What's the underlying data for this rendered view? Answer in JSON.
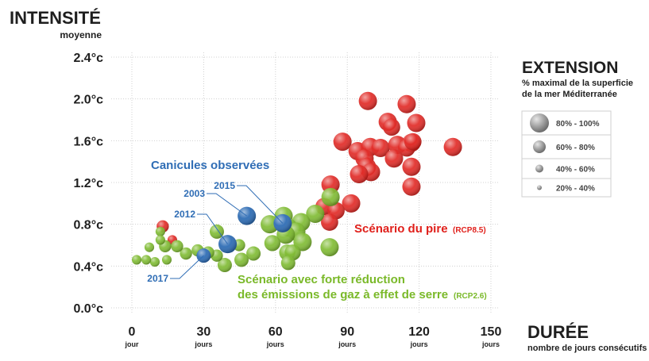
{
  "chart_data": {
    "type": "bubble",
    "title": "INTENSITÉ",
    "subtitle": "moyenne",
    "x_label": "DURÉE",
    "x_sublabel": "nombre de jours consécutifs",
    "xlim": [
      0,
      150
    ],
    "xticks": [
      0,
      30,
      60,
      90,
      120,
      150
    ],
    "xtick_units": [
      "jour",
      "jours",
      "jours",
      "jours",
      "jours",
      "jours"
    ],
    "ylim": [
      0,
      2.4
    ],
    "yticks": [
      {
        "value": 0,
        "label": "0.0°c"
      },
      {
        "value": 0.4,
        "label": "0.4°c"
      },
      {
        "value": 0.8,
        "label": "0.8°c"
      },
      {
        "value": 1.2,
        "label": "1.2°c"
      },
      {
        "value": 1.6,
        "label": "1.6°c"
      },
      {
        "value": 2.0,
        "label": "2.0°c"
      },
      {
        "value": 2.4,
        "label": "2.4°c"
      }
    ],
    "grid": true,
    "size_legend": {
      "title": "EXTENSION",
      "subtitle": [
        "% maximal de la superficie",
        "de la mer Méditerranée"
      ],
      "entries": [
        "80% - 100%",
        "60% - 80%",
        "40% - 60%",
        "20% - 40%"
      ]
    },
    "series": [
      {
        "name": "Canicules observées",
        "color": "#2f6db5",
        "labels": [
          "2003",
          "2015",
          "2012",
          "2017"
        ],
        "x": [
          48,
          63,
          40,
          30
        ],
        "values": [
          0.88,
          0.81,
          0.61,
          0.5
        ],
        "sizes": [
          90,
          90,
          90,
          55
        ]
      },
      {
        "name": "Scénario du pire",
        "note": "(RCP8.5)",
        "color": "#e0201b",
        "x": [
          98.6,
          114.8,
          106.9,
          108.5,
          118.8,
          88,
          94.3,
          99.6,
          103.9,
          110.9,
          116.8,
          114.8,
          117.4,
          134.1,
          97.2,
          98.2,
          99.9,
          94.9,
          109.5,
          116.8,
          116.8,
          83,
          91.6,
          80.3,
          85.3,
          82.6,
          12.9,
          16.9
        ],
        "values": [
          1.98,
          1.95,
          1.78,
          1.73,
          1.77,
          1.59,
          1.5,
          1.54,
          1.53,
          1.56,
          1.58,
          1.53,
          1.59,
          1.54,
          1.43,
          1.35,
          1.3,
          1.28,
          1.43,
          1.35,
          1.16,
          1.18,
          1.0,
          0.97,
          0.93,
          0.82,
          0.78,
          0.65
        ],
        "sizes": [
          90,
          90,
          90,
          80,
          90,
          90,
          90,
          90,
          90,
          90,
          90,
          80,
          80,
          90,
          90,
          90,
          90,
          90,
          90,
          90,
          90,
          90,
          90,
          80,
          80,
          80,
          40,
          25
        ]
      },
      {
        "name": "Scénario avec forte réduction des émissions de gaz à effet de serre",
        "note": "(RCP2.6)",
        "color": "#7ab929",
        "label_lines": [
          "Scénario avec forte réduction",
          "des émissions de gaz à effet de serre"
        ],
        "x": [
          83,
          76.6,
          70.7,
          63.4,
          57.6,
          65.3,
          68.7,
          64.3,
          71.3,
          82.6,
          58.7,
          64.9,
          67.2,
          65.3,
          50.8,
          45.8,
          44.8,
          38.8,
          35.5,
          35.5,
          31.9,
          27.5,
          22.6,
          18.9,
          13.9,
          11.9,
          14.6,
          9.6,
          6.0,
          2.0,
          7.3,
          11.9
        ],
        "values": [
          1.06,
          0.9,
          0.82,
          0.88,
          0.8,
          0.77,
          0.73,
          0.7,
          0.63,
          0.58,
          0.62,
          0.53,
          0.53,
          0.43,
          0.52,
          0.46,
          0.6,
          0.41,
          0.5,
          0.73,
          0.53,
          0.55,
          0.52,
          0.59,
          0.59,
          0.73,
          0.46,
          0.44,
          0.46,
          0.46,
          0.58,
          0.65
        ],
        "sizes": [
          90,
          90,
          90,
          90,
          90,
          90,
          90,
          90,
          90,
          90,
          70,
          70,
          70,
          55,
          55,
          55,
          40,
          55,
          40,
          55,
          40,
          40,
          40,
          40,
          40,
          25,
          25,
          25,
          25,
          25,
          25,
          25
        ]
      }
    ]
  }
}
